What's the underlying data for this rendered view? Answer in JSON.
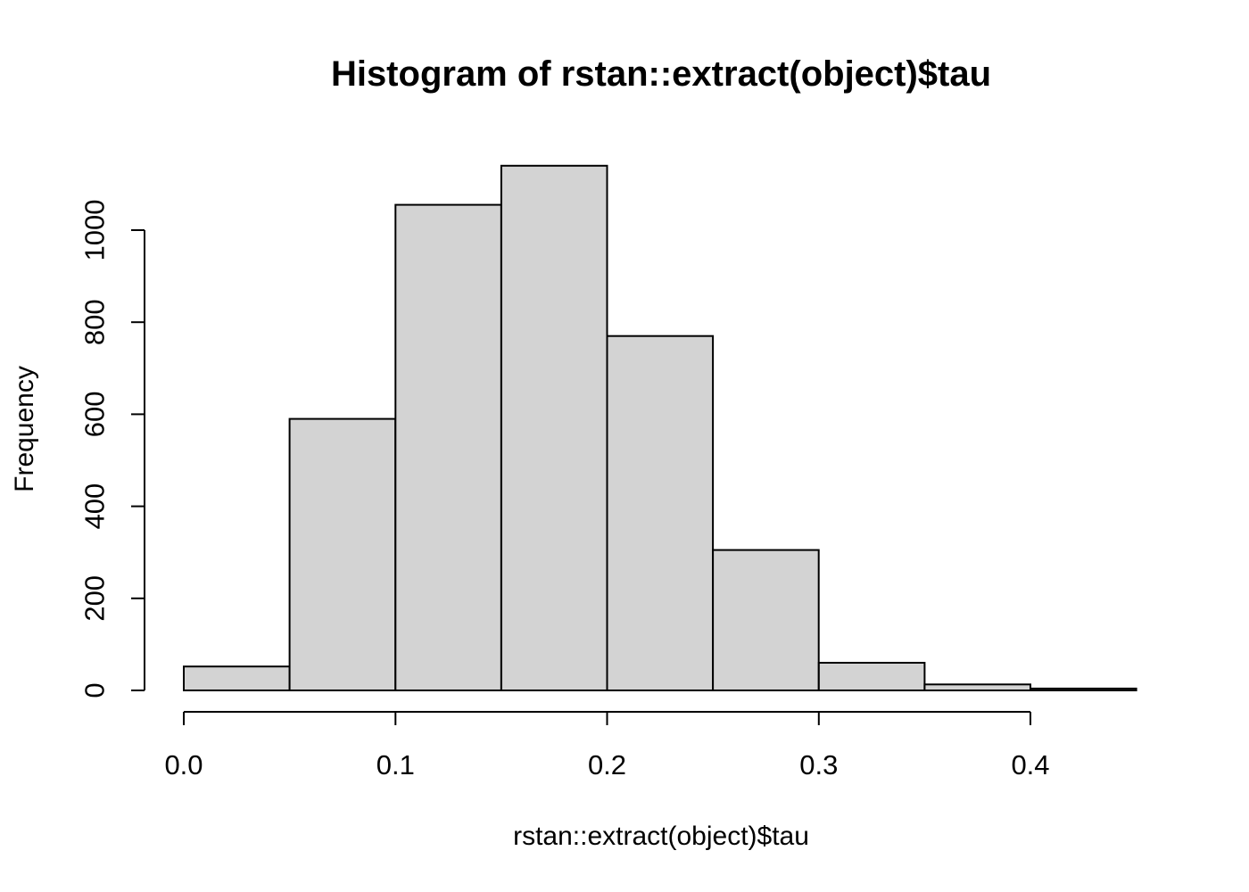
{
  "figure": {
    "background": "#FFFFFF"
  },
  "chart_data": {
    "type": "bar",
    "subtype": "histogram",
    "title": "Histogram of rstan::extract(object)$tau",
    "xlabel": "rstan::extract(object)$tau",
    "ylabel": "Frequency",
    "bin_breaks": [
      0,
      0.05,
      0.1,
      0.15,
      0.2,
      0.25,
      0.3,
      0.35,
      0.4,
      0.45
    ],
    "counts": [
      52,
      590,
      1055,
      1140,
      770,
      305,
      60,
      13,
      4
    ],
    "x_ticks": {
      "values": [
        0.0,
        0.1,
        0.2,
        0.3,
        0.4
      ],
      "labels": [
        "0.0",
        "0.1",
        "0.2",
        "0.3",
        "0.4"
      ]
    },
    "y_ticks": {
      "values": [
        0,
        200,
        400,
        600,
        800,
        1000
      ],
      "labels": [
        "0",
        "200",
        "400",
        "600",
        "800",
        "1000"
      ]
    },
    "xlim": [
      0,
      0.45
    ],
    "ylim": [
      0,
      1140
    ],
    "grid": false,
    "legend": null,
    "colors": {
      "bar_fill": "#D3D3D3",
      "bar_border": "#000000",
      "axis": "#000000",
      "text": "#000000"
    }
  }
}
